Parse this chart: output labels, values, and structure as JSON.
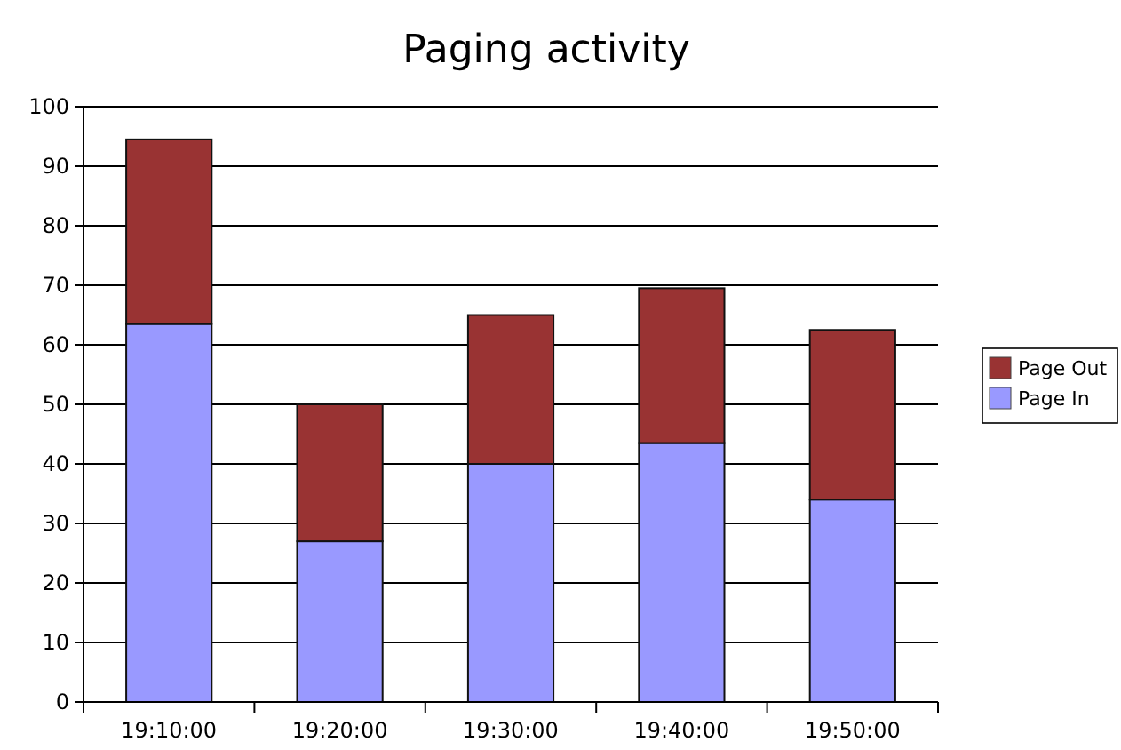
{
  "chart_data": {
    "type": "bar",
    "title": "Paging activity",
    "stacked": true,
    "categories": [
      "19:10:00",
      "19:20:00",
      "19:30:00",
      "19:40:00",
      "19:50:00"
    ],
    "series": [
      {
        "name": "Page In",
        "color": "#9999ff",
        "values": [
          63.5,
          27,
          40,
          43.5,
          34
        ]
      },
      {
        "name": "Page Out",
        "color": "#993333",
        "values": [
          31,
          23,
          25,
          26,
          28.5
        ]
      }
    ],
    "ylim": [
      0,
      100
    ],
    "yticks": [
      0,
      10,
      20,
      30,
      40,
      50,
      60,
      70,
      80,
      90,
      100
    ],
    "grid": "y",
    "legend": "right"
  }
}
